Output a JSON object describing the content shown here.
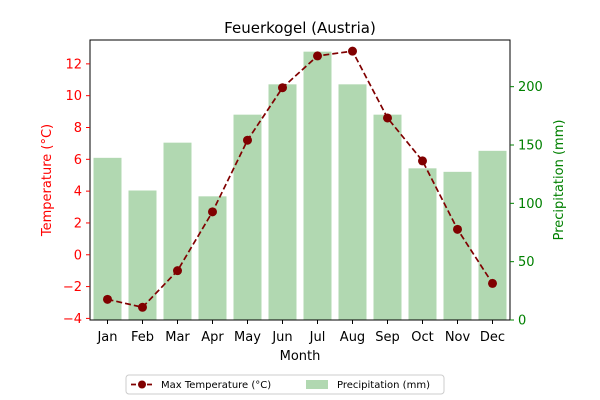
{
  "chart_data": {
    "type": "bar",
    "title": "Feuerkogel (Austria)",
    "xlabel": "Month",
    "ylabel_left": "Temperature (°C)",
    "ylabel_right": "Precipitation (mm)",
    "categories": [
      "Jan",
      "Feb",
      "Mar",
      "Apr",
      "May",
      "Jun",
      "Jul",
      "Aug",
      "Sep",
      "Oct",
      "Nov",
      "Dec"
    ],
    "ylim_left": [
      -4.1,
      13.5
    ],
    "ylim_right": [
      0,
      240
    ],
    "yticks_left": [
      -4,
      -2,
      0,
      2,
      4,
      6,
      8,
      10,
      12
    ],
    "yticks_right": [
      0,
      50,
      100,
      150,
      200
    ],
    "series": [
      {
        "name": "Max Temperature (°C)",
        "type": "line",
        "axis": "left",
        "color": "#800000",
        "values": [
          -2.8,
          -3.3,
          -1.0,
          2.7,
          7.2,
          10.5,
          12.5,
          12.8,
          8.6,
          5.9,
          1.6,
          -1.8
        ]
      },
      {
        "name": "Precipitation (mm)",
        "type": "bar",
        "axis": "right",
        "color": "#b1d8b1",
        "values": [
          139,
          111,
          152,
          106,
          176,
          202,
          230,
          202,
          176,
          130,
          127,
          145
        ]
      }
    ],
    "grid": false,
    "legend_position": "below chart",
    "colors": {
      "left_axis": "#ff0000",
      "right_axis": "#008000"
    }
  }
}
